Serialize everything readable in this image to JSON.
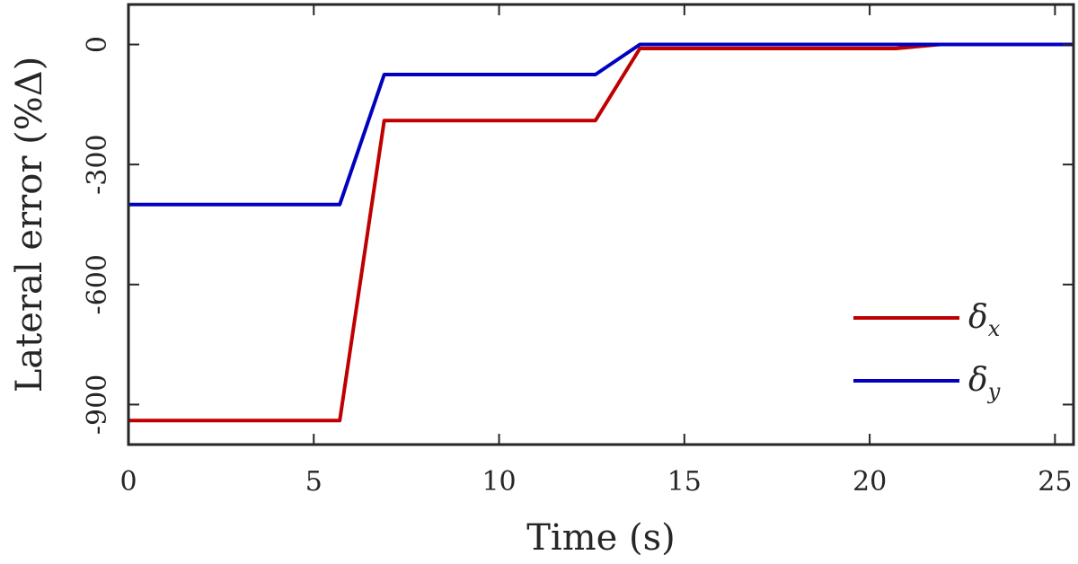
{
  "chart_data": {
    "type": "line",
    "xlabel": "Time (s)",
    "ylabel": "Lateral error (%Δ)",
    "xlim": [
      0,
      25.5
    ],
    "ylim": [
      -1000,
      100
    ],
    "xticks": [
      0,
      5,
      10,
      15,
      20,
      25
    ],
    "xtick_labels": [
      "0",
      "5",
      "10",
      "15",
      "20",
      "25"
    ],
    "yticks": [
      0,
      -300,
      -600,
      -900
    ],
    "ytick_labels": [
      "0",
      "-300",
      "-600",
      "-900"
    ],
    "grid": false,
    "legend_position": "bottom-right",
    "series": [
      {
        "name": "δx",
        "legend_base": "δ",
        "legend_sub": "x",
        "color": "#c00000",
        "x": [
          0,
          5.7,
          6.9,
          12.6,
          13.8,
          20.7,
          21.9,
          25.5
        ],
        "y": [
          -940,
          -940,
          -190,
          -190,
          -10,
          -10,
          0,
          0
        ]
      },
      {
        "name": "δy",
        "legend_base": "δ",
        "legend_sub": "y",
        "color": "#0000c0",
        "x": [
          0,
          5.7,
          6.9,
          12.6,
          13.8,
          25.5
        ],
        "y": [
          -400,
          -400,
          -75,
          -75,
          0,
          0
        ]
      }
    ]
  }
}
